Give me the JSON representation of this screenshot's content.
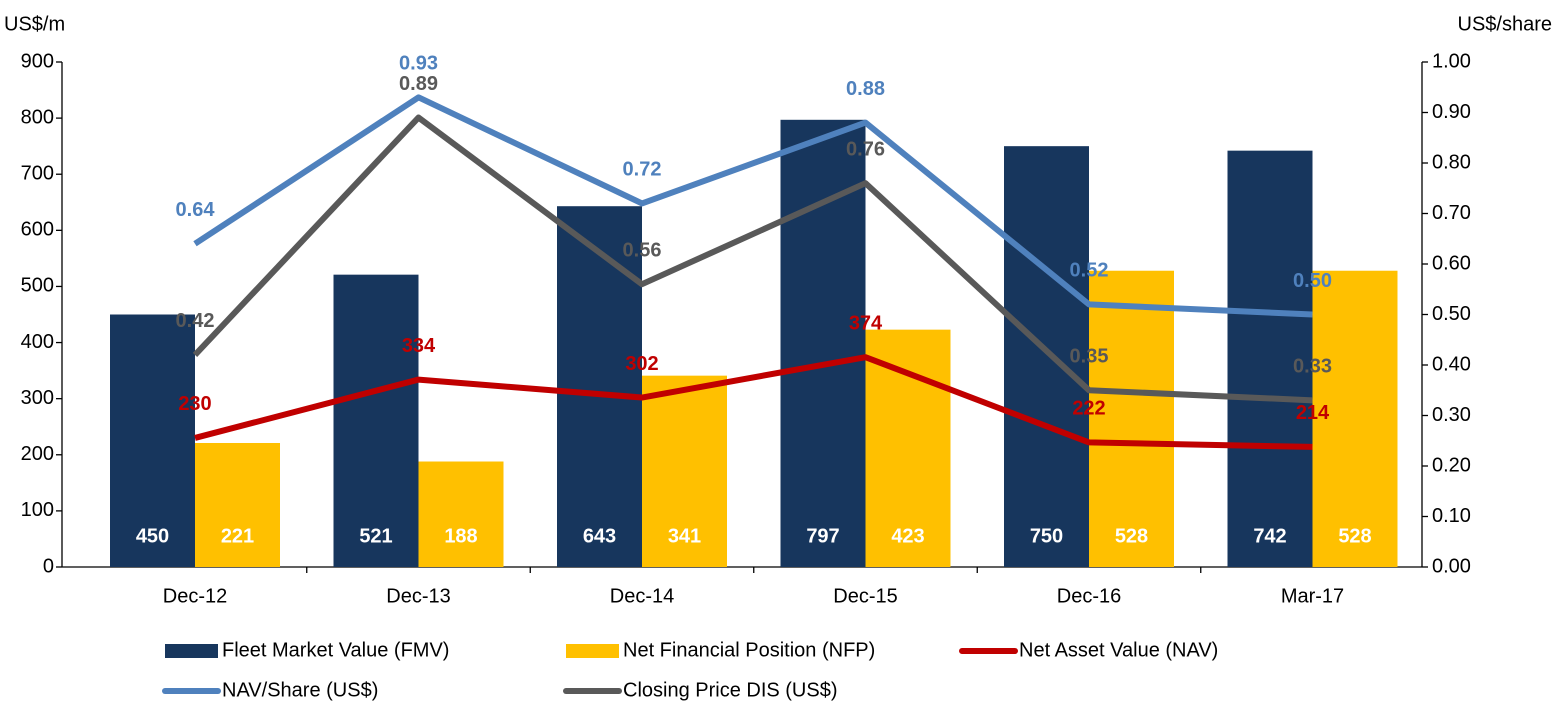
{
  "chart_data": {
    "type": "bar",
    "ylabel": "US$/m",
    "y2label": "US$/share",
    "categories": [
      "Dec-12",
      "Dec-13",
      "Dec-14",
      "Dec-15",
      "Dec-16",
      "Mar-17"
    ],
    "ylim": [
      0,
      900
    ],
    "yticks": [
      0,
      100,
      200,
      300,
      400,
      500,
      600,
      700,
      800,
      900
    ],
    "y2lim": [
      0,
      1
    ],
    "y2ticks": [
      {
        "value": 0,
        "label": "0.00"
      },
      {
        "value": 0.1,
        "label": "0.10"
      },
      {
        "value": 0.2,
        "label": "0.20"
      },
      {
        "value": 0.3,
        "label": "0.30"
      },
      {
        "value": 0.4,
        "label": "0.40"
      },
      {
        "value": 0.5,
        "label": "0.50"
      },
      {
        "value": 0.6,
        "label": "0.60"
      },
      {
        "value": 0.7,
        "label": "0.70"
      },
      {
        "value": 0.8,
        "label": "0.80"
      },
      {
        "value": 0.9,
        "label": "0.90"
      },
      {
        "value": 1,
        "label": "1.00"
      }
    ],
    "series": [
      {
        "name": "Fleet Market Value (FMV)",
        "type": "bar",
        "color": "#17365d",
        "values": [
          450,
          521,
          643,
          797,
          750,
          742
        ]
      },
      {
        "name": "Net Financial Position (NFP)",
        "type": "bar",
        "color": "#ffc000",
        "values": [
          221,
          188,
          341,
          423,
          528,
          528
        ]
      },
      {
        "name": "Net Asset Value (NAV)",
        "type": "line",
        "color": "#c00000",
        "values": [
          230,
          334,
          302,
          374,
          222,
          214
        ]
      },
      {
        "name": "NAV/Share (US$)",
        "type": "line",
        "axis": "y2",
        "color": "#4f81bd",
        "values": [
          0.64,
          0.93,
          0.72,
          0.88,
          0.52,
          0.5
        ],
        "value_labels": [
          "0.64",
          "0.93",
          "0.72",
          "0.88",
          "0.52",
          "0.50"
        ]
      },
      {
        "name": "Closing Price DIS (US$)",
        "type": "line",
        "axis": "y2",
        "color": "#595959",
        "values": [
          0.42,
          0.89,
          0.56,
          0.76,
          0.35,
          0.33
        ],
        "value_labels": [
          "0.42",
          "0.89",
          "0.56",
          "0.76",
          "0.35",
          "0.33"
        ]
      }
    ]
  }
}
